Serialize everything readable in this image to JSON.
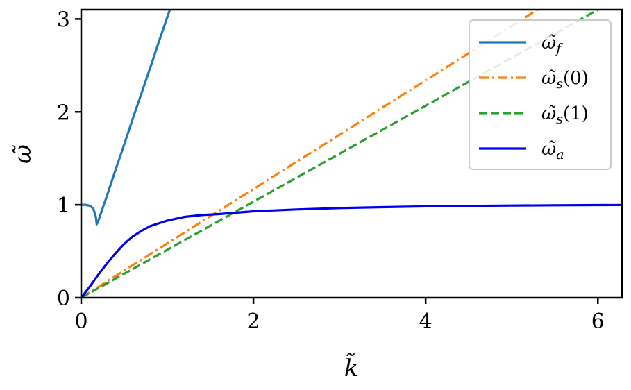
{
  "chart_data": {
    "type": "line",
    "title": "",
    "xlabel": "k̃",
    "ylabel": "ω̃",
    "xlim": [
      0,
      6.28
    ],
    "ylim": [
      0,
      3.1
    ],
    "xticks": [
      0,
      2,
      4,
      6
    ],
    "yticks": [
      0,
      1,
      2,
      3
    ],
    "xtick_labels": [
      "0",
      "2",
      "4",
      "6"
    ],
    "ytick_labels": [
      "0",
      "1",
      "2",
      "3"
    ],
    "grid": false,
    "legend_position": "top-right",
    "series": [
      {
        "name": "ω̃_f",
        "legend_main": "ω̃",
        "legend_sub": "f",
        "legend_suffix": "",
        "color": "#1f77b4",
        "style": "solid",
        "x": [
          0,
          0.05,
          0.1,
          0.14,
          0.17,
          0.18,
          0.2,
          0.3,
          0.4,
          0.5,
          0.6,
          0.7,
          0.8,
          0.9,
          1.0,
          1.03
        ],
        "y": [
          1.0,
          1.0,
          0.99,
          0.96,
          0.87,
          0.79,
          0.83,
          1.1,
          1.38,
          1.65,
          1.93,
          2.2,
          2.47,
          2.75,
          3.02,
          3.1
        ]
      },
      {
        "name": "ω̃_s(0)",
        "legend_main": "ω̃",
        "legend_sub": "s",
        "legend_suffix": "(0)",
        "color": "#ff7f0e",
        "style": "dashdot",
        "x": [
          0,
          5.3
        ],
        "y": [
          0,
          3.1
        ]
      },
      {
        "name": "ω̃_s(1)",
        "legend_main": "ω̃",
        "legend_sub": "s",
        "legend_suffix": "(1)",
        "color": "#2ca02c",
        "style": "dashed",
        "x": [
          0,
          6.0
        ],
        "y": [
          0,
          3.1
        ]
      },
      {
        "name": "ω̃_a",
        "legend_main": "ω̃",
        "legend_sub": "a",
        "legend_suffix": "",
        "color": "#0000ee",
        "style": "solid",
        "x": [
          0,
          0.1,
          0.2,
          0.3,
          0.4,
          0.5,
          0.6,
          0.7,
          0.8,
          0.9,
          1.0,
          1.2,
          1.4,
          1.6,
          1.8,
          2.0,
          2.5,
          3.0,
          3.5,
          4.0,
          4.5,
          5.0,
          5.5,
          6.0,
          6.28
        ],
        "y": [
          0,
          0.12,
          0.25,
          0.37,
          0.48,
          0.58,
          0.66,
          0.72,
          0.77,
          0.8,
          0.83,
          0.87,
          0.89,
          0.9,
          0.915,
          0.93,
          0.95,
          0.965,
          0.975,
          0.983,
          0.988,
          0.992,
          0.995,
          0.997,
          0.998
        ]
      }
    ]
  }
}
